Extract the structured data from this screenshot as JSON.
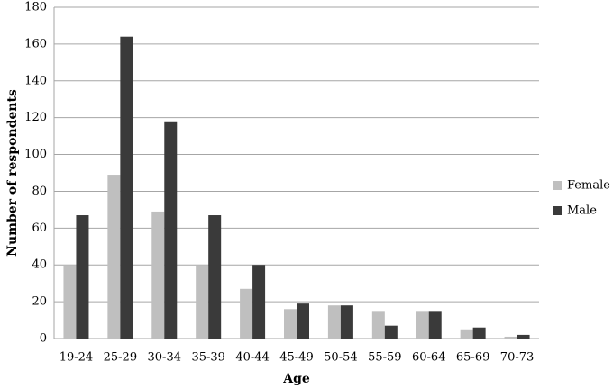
{
  "chart_data": {
    "type": "bar",
    "x_label": "Age",
    "y_label": "Number of respondents",
    "categories": [
      "19-24",
      "25-29",
      "30-34",
      "35-39",
      "40-44",
      "45-49",
      "50-54",
      "55-59",
      "60-64",
      "65-69",
      "70-73"
    ],
    "series": [
      {
        "name": "Female",
        "color": "#bfbfbf",
        "values": [
          40,
          89,
          69,
          40,
          27,
          16,
          18,
          15,
          15,
          5,
          1
        ]
      },
      {
        "name": "Male",
        "color": "#3a3a3a",
        "values": [
          67,
          164,
          118,
          67,
          40,
          19,
          18,
          7,
          15,
          6,
          2
        ]
      }
    ],
    "ylim": [
      0,
      180
    ],
    "yticks": [
      0,
      20,
      40,
      60,
      80,
      100,
      120,
      140,
      160,
      180
    ],
    "grid": true,
    "legend": "right"
  }
}
